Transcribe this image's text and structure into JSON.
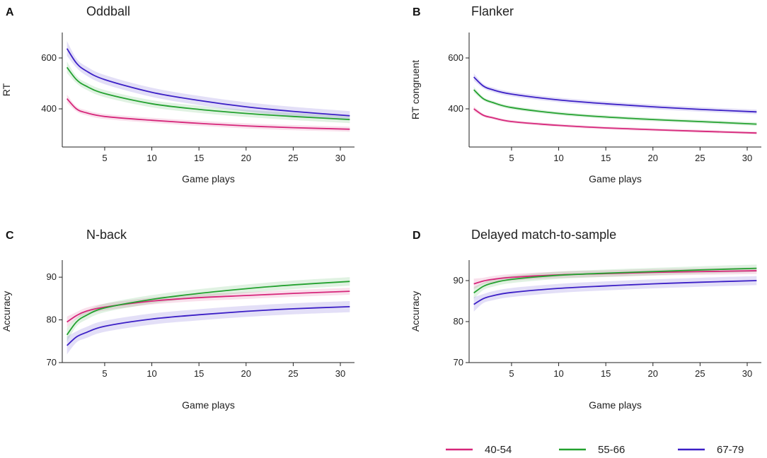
{
  "colors": {
    "40-54": "#d6267a",
    "55-66": "#23a12f",
    "67-79": "#3b1fc6"
  },
  "legend": [
    {
      "name": "40-54",
      "color": "#d6267a"
    },
    {
      "name": "55-66",
      "color": "#23a12f"
    },
    {
      "name": "67-79",
      "color": "#3b1fc6"
    }
  ],
  "chart_data": [
    {
      "type": "line",
      "letter": "A",
      "title": "Oddball",
      "xlabel": "Game plays",
      "ylabel": "RT",
      "xlim": [
        0.5,
        31.5
      ],
      "ylim": [
        250,
        700
      ],
      "xticks": [
        5,
        10,
        15,
        20,
        25,
        30
      ],
      "yticks": [
        400,
        600
      ],
      "series": [
        {
          "name": "40-54",
          "color": "#d6267a",
          "band": 10,
          "x": [
            1,
            2,
            3,
            5,
            10,
            15,
            20,
            25,
            31
          ],
          "values": [
            440,
            400,
            385,
            370,
            355,
            343,
            333,
            326,
            320
          ]
        },
        {
          "name": "55-66",
          "color": "#23a12f",
          "band": 14,
          "x": [
            1,
            2,
            3,
            5,
            10,
            15,
            20,
            25,
            31
          ],
          "values": [
            563,
            515,
            490,
            460,
            420,
            398,
            382,
            370,
            358
          ]
        },
        {
          "name": "67-79",
          "color": "#3b1fc6",
          "band": 18,
          "x": [
            1,
            2,
            3,
            5,
            10,
            15,
            20,
            25,
            31
          ],
          "values": [
            637,
            580,
            550,
            515,
            465,
            433,
            408,
            390,
            373
          ]
        }
      ]
    },
    {
      "type": "line",
      "letter": "B",
      "title": "Flanker",
      "xlabel": "Game plays",
      "ylabel": "RT congruent",
      "xlim": [
        0.5,
        31.5
      ],
      "ylim": [
        250,
        700
      ],
      "xticks": [
        5,
        10,
        15,
        20,
        25,
        30
      ],
      "yticks": [
        400,
        600
      ],
      "series": [
        {
          "name": "40-54",
          "color": "#d6267a",
          "band": 6,
          "x": [
            1,
            2,
            3,
            5,
            10,
            15,
            20,
            25,
            31
          ],
          "values": [
            400,
            375,
            365,
            350,
            335,
            325,
            318,
            312,
            305
          ]
        },
        {
          "name": "55-66",
          "color": "#23a12f",
          "band": 7,
          "x": [
            1,
            2,
            3,
            5,
            10,
            15,
            20,
            25,
            31
          ],
          "values": [
            475,
            440,
            425,
            405,
            382,
            368,
            358,
            350,
            340
          ]
        },
        {
          "name": "67-79",
          "color": "#3b1fc6",
          "band": 9,
          "x": [
            1,
            2,
            3,
            5,
            10,
            15,
            20,
            25,
            31
          ],
          "values": [
            525,
            490,
            475,
            458,
            435,
            420,
            408,
            398,
            388
          ]
        }
      ]
    },
    {
      "type": "line",
      "letter": "C",
      "title": "N-back",
      "xlabel": "Game plays",
      "ylabel": "Accuracy",
      "xlim": [
        0.5,
        31.5
      ],
      "ylim": [
        70,
        94
      ],
      "xticks": [
        5,
        10,
        15,
        20,
        25,
        30
      ],
      "yticks": [
        70,
        80,
        90
      ],
      "series": [
        {
          "name": "40-54",
          "color": "#d6267a",
          "band": 0.8,
          "x": [
            1,
            2,
            3,
            5,
            10,
            15,
            20,
            25,
            31
          ],
          "values": [
            79.5,
            81.0,
            82.0,
            83.0,
            84.4,
            85.2,
            85.7,
            86.2,
            86.7
          ]
        },
        {
          "name": "55-66",
          "color": "#23a12f",
          "band": 1.0,
          "x": [
            1,
            2,
            3,
            5,
            10,
            15,
            20,
            25,
            31
          ],
          "values": [
            76.5,
            79.5,
            81.0,
            82.8,
            84.8,
            86.2,
            87.3,
            88.2,
            89.0
          ]
        },
        {
          "name": "67-79",
          "color": "#3b1fc6",
          "band": 1.3,
          "x": [
            1,
            2,
            3,
            5,
            10,
            15,
            20,
            25,
            31
          ],
          "values": [
            74.0,
            76.0,
            77.0,
            78.5,
            80.2,
            81.2,
            82.0,
            82.6,
            83.1
          ]
        }
      ]
    },
    {
      "type": "line",
      "letter": "D",
      "title": "Delayed match-to-sample",
      "xlabel": "Game plays",
      "ylabel": "Accuracy",
      "xlim": [
        0.5,
        31.5
      ],
      "ylim": [
        70,
        95
      ],
      "xticks": [
        5,
        10,
        15,
        20,
        25,
        30
      ],
      "yticks": [
        70,
        80,
        90
      ],
      "series": [
        {
          "name": "40-54",
          "color": "#d6267a",
          "band": 0.8,
          "x": [
            1,
            2,
            3,
            5,
            10,
            15,
            20,
            25,
            31
          ],
          "values": [
            89.2,
            89.9,
            90.3,
            90.8,
            91.4,
            91.7,
            92.0,
            92.2,
            92.4
          ]
        },
        {
          "name": "55-66",
          "color": "#23a12f",
          "band": 0.9,
          "x": [
            1,
            2,
            3,
            5,
            10,
            15,
            20,
            25,
            31
          ],
          "values": [
            87.0,
            88.6,
            89.4,
            90.3,
            91.3,
            91.8,
            92.2,
            92.6,
            93.0
          ]
        },
        {
          "name": "67-79",
          "color": "#3b1fc6",
          "band": 1.1,
          "x": [
            1,
            2,
            3,
            5,
            10,
            15,
            20,
            25,
            31
          ],
          "values": [
            84.2,
            85.6,
            86.3,
            87.1,
            88.1,
            88.7,
            89.2,
            89.6,
            90.0
          ]
        }
      ]
    }
  ]
}
